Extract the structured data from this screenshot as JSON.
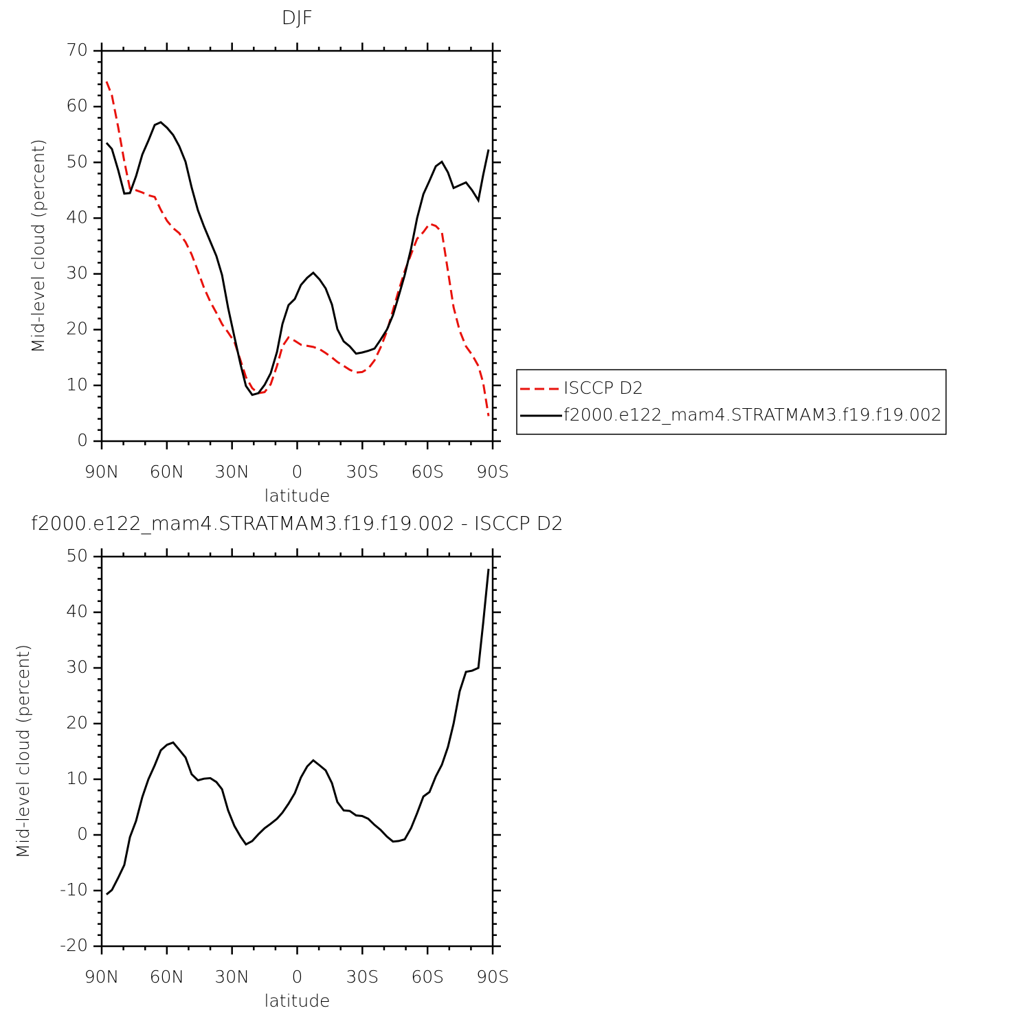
{
  "chart_data": [
    {
      "type": "line",
      "title": "DJF",
      "xlabel": "latitude",
      "ylabel": "Mid-level cloud (percent)",
      "x": [
        87.8,
        85.3,
        82.4,
        79.6,
        77.0,
        74.2,
        71.3,
        68.5,
        65.6,
        62.8,
        59.9,
        57.1,
        54.3,
        51.4,
        48.6,
        45.7,
        42.9,
        40.0,
        37.2,
        34.6,
        31.8,
        28.9,
        26.1,
        23.6,
        20.7,
        17.9,
        15.0,
        12.2,
        9.3,
        6.8,
        4.0,
        1.1,
        -1.7,
        -4.6,
        -7.4,
        -10.3,
        -13.1,
        -16.0,
        -18.5,
        -21.4,
        -24.2,
        -27.1,
        -29.9,
        -32.7,
        -35.6,
        -38.4,
        -41.3,
        -44.1,
        -46.7,
        -49.5,
        -52.4,
        -55.2,
        -58.1,
        -60.9,
        -63.8,
        -66.6,
        -69.4,
        -72.0,
        -74.8,
        -77.7,
        -80.5,
        -83.4,
        -85.6,
        -88.1
      ],
      "xlim": [
        90,
        -90
      ],
      "xticks": [
        {
          "value": 90,
          "label": "90N"
        },
        {
          "value": 60,
          "label": "60N"
        },
        {
          "value": 30,
          "label": "30N"
        },
        0,
        {
          "value": -30,
          "label": "30S"
        },
        {
          "value": -60,
          "label": "60S"
        },
        {
          "value": -90,
          "label": "90S"
        }
      ],
      "ylim": [
        0,
        70
      ],
      "yticks": [
        0,
        10,
        20,
        30,
        40,
        50,
        60,
        70
      ],
      "legend": "right",
      "series": [
        {
          "name": "ISCCP D2",
          "color": "#e8120c",
          "linestyle": "dashed",
          "values": [
            64.5,
            62.0,
            56.3,
            50.2,
            45.3,
            45.0,
            44.6,
            44.1,
            43.8,
            41.5,
            39.5,
            38.2,
            37.3,
            35.7,
            33.5,
            30.5,
            27.5,
            25.0,
            23.0,
            21.0,
            19.5,
            17.8,
            14.5,
            11.5,
            9.5,
            8.6,
            8.8,
            10.2,
            13.5,
            17.0,
            18.6,
            18.0,
            17.3,
            17.1,
            16.9,
            16.5,
            15.8,
            15.0,
            14.2,
            13.5,
            12.8,
            12.3,
            12.4,
            13.0,
            14.5,
            16.8,
            19.7,
            23.5,
            27.0,
            30.5,
            33.5,
            36.3,
            37.5,
            39.0,
            38.6,
            37.5,
            30.5,
            24.0,
            19.8,
            17.0,
            15.5,
            13.5,
            10.5,
            4.5
          ]
        },
        {
          "name": "f2000.e122_mam4.STRATMAM3.f19.f19.002",
          "color": "#000000",
          "linestyle": "solid",
          "values": [
            53.5,
            52.4,
            48.6,
            44.4,
            44.5,
            47.5,
            51.4,
            53.9,
            56.7,
            57.2,
            56.2,
            54.9,
            52.9,
            50.1,
            45.5,
            41.4,
            38.5,
            35.8,
            33.2,
            29.8,
            23.9,
            18.7,
            13.8,
            9.9,
            8.3,
            8.6,
            10.1,
            12.2,
            16.0,
            21.0,
            24.4,
            25.5,
            28.0,
            29.3,
            30.2,
            29.0,
            27.4,
            24.5,
            20.1,
            17.9,
            17.0,
            15.7,
            15.9,
            16.2,
            16.6,
            18.2,
            20.0,
            22.6,
            26.0,
            29.8,
            34.5,
            40.0,
            44.3,
            46.7,
            49.3,
            50.1,
            48.2,
            45.4,
            45.9,
            46.4,
            45.0,
            43.2,
            47.7,
            52.3
          ]
        }
      ]
    },
    {
      "type": "line",
      "title": "f2000.e122_mam4.STRATMAM3.f19.f19.002 - ISCCP D2",
      "xlabel": "latitude",
      "ylabel": "Mid-level cloud (percent)",
      "x": [
        87.8,
        85.3,
        82.4,
        79.6,
        77.0,
        74.2,
        71.3,
        68.5,
        65.6,
        62.8,
        59.9,
        57.1,
        54.3,
        51.4,
        48.6,
        45.7,
        42.9,
        40.0,
        37.2,
        34.6,
        31.8,
        28.9,
        26.1,
        23.6,
        20.7,
        17.9,
        15.0,
        12.2,
        9.3,
        6.8,
        4.0,
        1.1,
        -1.7,
        -4.6,
        -7.4,
        -10.3,
        -13.1,
        -16.0,
        -18.5,
        -21.4,
        -24.2,
        -27.1,
        -29.9,
        -32.7,
        -35.6,
        -38.4,
        -41.3,
        -44.1,
        -46.7,
        -49.5,
        -52.4,
        -55.2,
        -58.1,
        -60.9,
        -63.8,
        -66.6,
        -69.4,
        -72.0,
        -74.8,
        -77.7,
        -80.5,
        -83.4,
        -85.6,
        -88.1
      ],
      "xlim": [
        90,
        -90
      ],
      "xticks": [
        {
          "value": 90,
          "label": "90N"
        },
        {
          "value": 60,
          "label": "60N"
        },
        {
          "value": 30,
          "label": "30N"
        },
        0,
        {
          "value": -30,
          "label": "30S"
        },
        {
          "value": -60,
          "label": "60S"
        },
        {
          "value": -90,
          "label": "90S"
        }
      ],
      "ylim": [
        -20,
        50
      ],
      "yticks": [
        -20,
        -10,
        0,
        10,
        20,
        30,
        40,
        50
      ],
      "series": [
        {
          "color": "#000000",
          "linestyle": "solid",
          "values": [
            -10.7,
            -9.9,
            -7.7,
            -5.4,
            -0.4,
            2.5,
            6.8,
            10.0,
            12.5,
            15.2,
            16.2,
            16.6,
            15.3,
            13.9,
            10.9,
            9.8,
            10.1,
            10.2,
            9.5,
            8.2,
            4.4,
            1.6,
            -0.3,
            -1.7,
            -1.1,
            0.1,
            1.2,
            2.0,
            2.9,
            4.0,
            5.6,
            7.5,
            10.3,
            12.3,
            13.4,
            12.5,
            11.6,
            9.3,
            5.9,
            4.4,
            4.3,
            3.5,
            3.4,
            2.9,
            1.8,
            0.9,
            -0.3,
            -1.2,
            -1.1,
            -0.8,
            1.2,
            3.9,
            6.9,
            7.7,
            10.5,
            12.6,
            15.8,
            20.0,
            25.8,
            29.3,
            29.5,
            30.0,
            38.0,
            47.8
          ]
        }
      ]
    }
  ]
}
